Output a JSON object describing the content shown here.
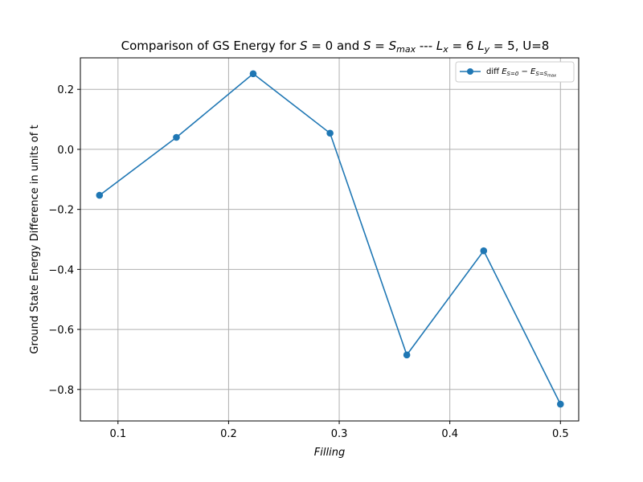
{
  "chart_data": {
    "type": "line",
    "title": "Comparison of GS Energy for S = 0 and S = Smax --- Lx = 6 Ly = 5, U=8",
    "xlabel": "Filling",
    "ylabel": "Ground State Energy Difference in units of t",
    "xlim": [
      0.066,
      0.5165
    ],
    "ylim": [
      -0.905,
      0.305
    ],
    "x_ticks": [
      0.1,
      0.2,
      0.3,
      0.4,
      0.5
    ],
    "x_tick_labels": [
      "0.1",
      "0.2",
      "0.3",
      "0.4",
      "0.5"
    ],
    "y_ticks": [
      -0.8,
      -0.6,
      -0.4,
      -0.2,
      0.0,
      0.2
    ],
    "y_tick_labels": [
      "−0.8",
      "−0.6",
      "−0.4",
      "−0.2",
      "0.0",
      "0.2"
    ],
    "grid": true,
    "legend_position": "top-right",
    "series": [
      {
        "name": "diff  E_{S=0} − E_{S=S_max}",
        "color": "#1f77b4",
        "marker": "circle",
        "x": [
          0.0833,
          0.1528,
          0.2222,
          0.2917,
          0.3611,
          0.4306,
          0.5
        ],
        "y": [
          -0.153,
          0.04,
          0.252,
          0.054,
          -0.685,
          -0.338,
          -0.849
        ]
      }
    ]
  }
}
